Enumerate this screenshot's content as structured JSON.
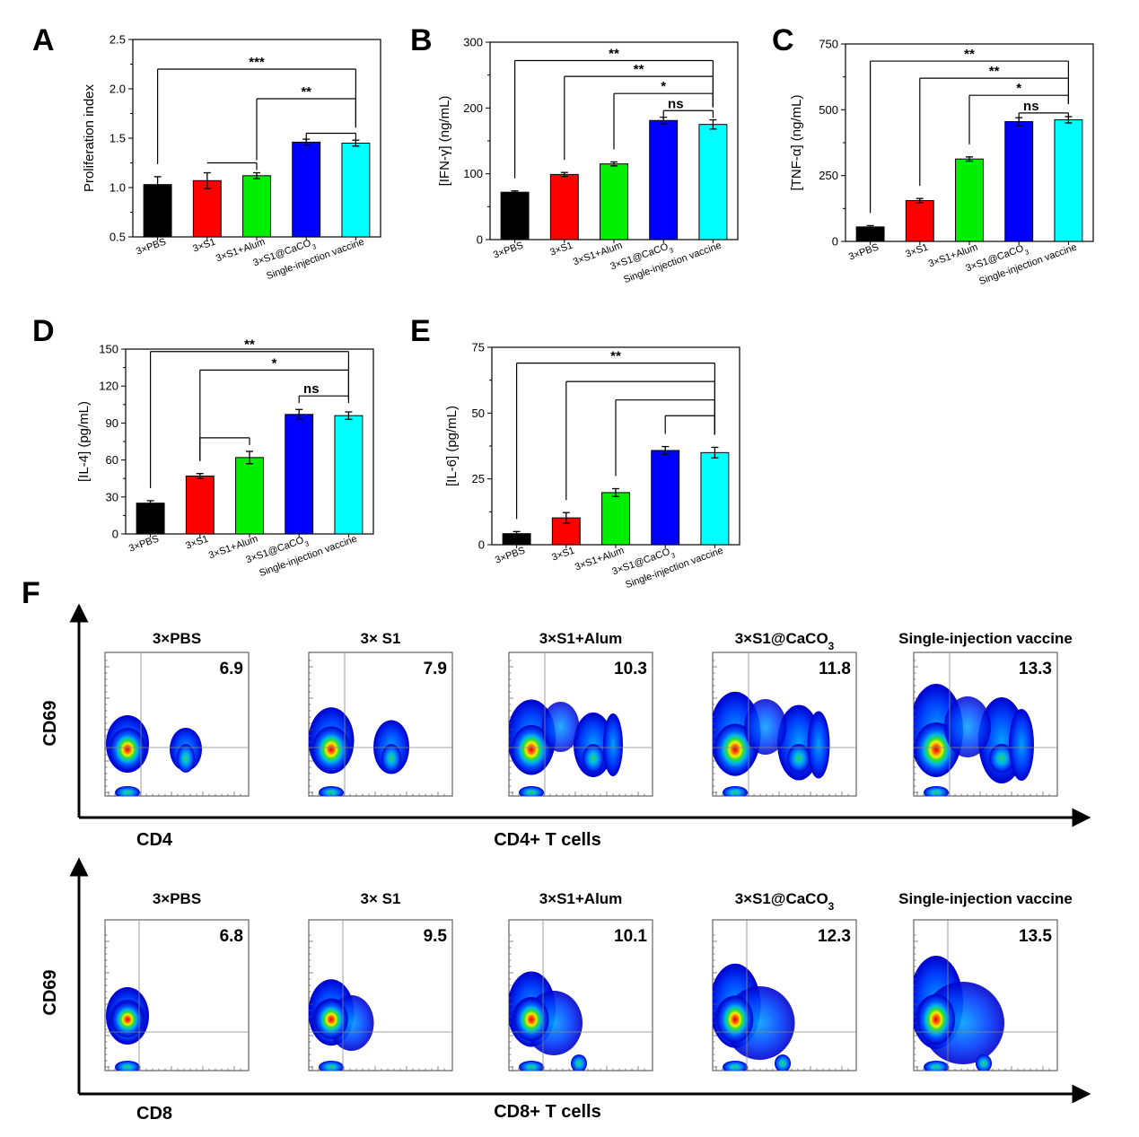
{
  "panel_letters": [
    "A",
    "B",
    "C",
    "D",
    "E",
    "F"
  ],
  "colors": {
    "bars": [
      "#000000",
      "#ff0000",
      "#00ee00",
      "#0000ff",
      "#00ffff"
    ]
  },
  "chart_data": [
    {
      "id": "A",
      "type": "bar",
      "ylabel": "Proliferation index",
      "categories": [
        "3×PBS",
        "3×S1",
        "3×S1+Alum",
        "3×S1@CaCO3",
        "Single-injection vaccine"
      ],
      "values": [
        1.03,
        1.07,
        1.12,
        1.46,
        1.45
      ],
      "errors": [
        0.08,
        0.08,
        0.03,
        0.03,
        0.03
      ],
      "ylim": [
        0.5,
        2.5
      ],
      "ticks": [
        0.5,
        1.0,
        1.5,
        2.0,
        2.5
      ],
      "tick_labels": [
        "0.5",
        "1.0",
        "1.5",
        "2.0",
        "2.5"
      ],
      "significance": [
        {
          "label": "***",
          "from": 0,
          "to": 4,
          "y": 2.2
        },
        {
          "label": "**",
          "from": 2,
          "to": 4,
          "y": 1.9
        },
        {
          "label": "",
          "from": 1,
          "to": 2,
          "y": 1.25
        },
        {
          "label": "",
          "from": 3,
          "to": 4,
          "y": 1.55
        }
      ]
    },
    {
      "id": "B",
      "type": "bar",
      "ylabel": "[IFN-γ] (ng/mL)",
      "categories": [
        "3×PBS",
        "3×S1",
        "3×S1+Alum",
        "3×S1@CaCO3",
        "Single-injection vaccine"
      ],
      "values": [
        72,
        99,
        115,
        181,
        175
      ],
      "errors": [
        2,
        3,
        3,
        5,
        7
      ],
      "ylim": [
        0,
        300
      ],
      "ticks": [
        0,
        100,
        200,
        300
      ],
      "tick_labels": [
        "0",
        "100",
        "200",
        "300"
      ],
      "significance": [
        {
          "label": "**",
          "from": 0,
          "to": 4,
          "y": 272
        },
        {
          "label": "**",
          "from": 1,
          "to": 4,
          "y": 248
        },
        {
          "label": "*",
          "from": 2,
          "to": 4,
          "y": 222
        },
        {
          "label": "ns",
          "from": 3,
          "to": 4,
          "y": 196
        }
      ]
    },
    {
      "id": "C",
      "type": "bar",
      "ylabel": "[TNF-α] (ng/mL)",
      "categories": [
        "3×PBS",
        "3×S1",
        "3×S1+Alum",
        "3×S1@CaCO3",
        "Single-injection vaccine"
      ],
      "values": [
        55,
        155,
        313,
        455,
        462
      ],
      "errors": [
        5,
        8,
        8,
        15,
        12
      ],
      "ylim": [
        0,
        750
      ],
      "ticks": [
        0,
        250,
        500,
        750
      ],
      "tick_labels": [
        "0",
        "250",
        "500",
        "750"
      ],
      "significance": [
        {
          "label": "**",
          "from": 0,
          "to": 4,
          "y": 685
        },
        {
          "label": "**",
          "from": 1,
          "to": 4,
          "y": 620
        },
        {
          "label": "*",
          "from": 2,
          "to": 4,
          "y": 555
        },
        {
          "label": "ns",
          "from": 3,
          "to": 4,
          "y": 488
        }
      ]
    },
    {
      "id": "D",
      "type": "bar",
      "ylabel": "[IL-4] (pg/mL)",
      "categories": [
        "3×PBS",
        "3×S1",
        "3×S1+Alum",
        "3×S1@CaCO3",
        "Single-injection vaccine"
      ],
      "values": [
        25,
        47,
        62,
        97,
        96
      ],
      "errors": [
        2,
        2,
        5,
        4,
        3
      ],
      "ylim": [
        0,
        150
      ],
      "ticks": [
        0,
        30,
        60,
        90,
        120,
        150
      ],
      "tick_labels": [
        "0",
        "30",
        "60",
        "90",
        "120",
        "150"
      ],
      "significance": [
        {
          "label": "**",
          "from": 0,
          "to": 4,
          "y": 148
        },
        {
          "label": "*",
          "from": 1,
          "to": 4,
          "y": 133
        },
        {
          "label": "ns",
          "from": 3,
          "to": 4,
          "y": 112
        },
        {
          "label": "",
          "from": 1,
          "to": 2,
          "y": 78
        }
      ]
    },
    {
      "id": "E",
      "type": "bar",
      "ylabel": "[IL-6] (pg/mL)",
      "categories": [
        "3×PBS",
        "3×S1",
        "3×S1+Alum",
        "3×S1@CaCO3",
        "Single-injection vaccine"
      ],
      "values": [
        4.2,
        10.2,
        19.8,
        35.8,
        35
      ],
      "errors": [
        0.8,
        2,
        1.5,
        1.5,
        2
      ],
      "ylim": [
        0,
        75
      ],
      "ticks": [
        0,
        25,
        50,
        75
      ],
      "tick_labels": [
        "0",
        "25",
        "50",
        "75"
      ],
      "significance": [
        {
          "label": "**",
          "from": 0,
          "to": 4,
          "y": 69
        },
        {
          "label": "",
          "from": 1,
          "to": 4,
          "y": 62
        },
        {
          "label": "",
          "from": 2,
          "to": 4,
          "y": 55
        },
        {
          "label": "",
          "from": 3,
          "to": 4,
          "y": 49
        }
      ]
    }
  ],
  "flow": {
    "rows": [
      {
        "xlabel": "CD4",
        "ylabel": "CD69",
        "caption": "CD4+ T cells",
        "plots": [
          {
            "title": "3×PBS",
            "value": "6.9"
          },
          {
            "title": "3× S1",
            "value": "7.9"
          },
          {
            "title": "3×S1+Alum",
            "value": "10.3"
          },
          {
            "title": "3×S1@CaCO3",
            "value": "11.8"
          },
          {
            "title": "Single-injection vaccine",
            "value": "13.3"
          }
        ]
      },
      {
        "xlabel": "CD8",
        "ylabel": "CD69",
        "caption": "CD8+ T cells",
        "plots": [
          {
            "title": "3×PBS",
            "value": "6.8"
          },
          {
            "title": "3× S1",
            "value": "9.5"
          },
          {
            "title": "3×S1+Alum",
            "value": "10.1"
          },
          {
            "title": "3×S1@CaCO3",
            "value": "12.3"
          },
          {
            "title": "Single-injection vaccine",
            "value": "13.5"
          }
        ]
      }
    ]
  }
}
